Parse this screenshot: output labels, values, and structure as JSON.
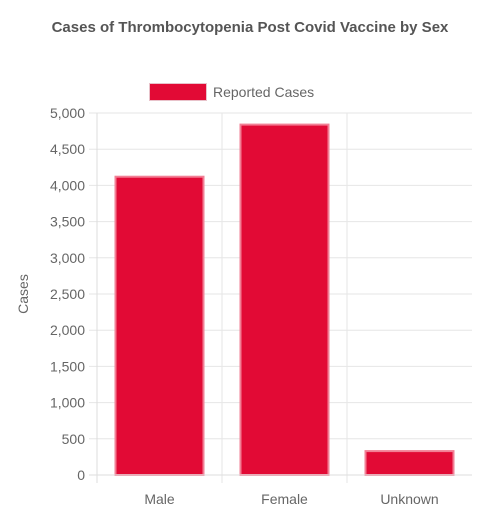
{
  "colors": {
    "bar_fill": "#e20a35",
    "bar_border": "#f27f95",
    "grid": "#e6e6e6",
    "text": "#666666"
  },
  "chart_data": {
    "type": "bar",
    "title": "Cases of Thrombocytopenia Post Covid Vaccine by Sex",
    "categories": [
      "Male",
      "Female",
      "Unknown"
    ],
    "series": [
      {
        "name": "Reported Cases",
        "values": [
          4120,
          4840,
          330
        ]
      }
    ],
    "xlabel": "",
    "ylabel": "Cases",
    "ylim": [
      0,
      5000
    ],
    "yticks": [
      0,
      500,
      1000,
      1500,
      2000,
      2500,
      3000,
      3500,
      4000,
      4500,
      5000
    ],
    "ytick_labels": [
      "0",
      "500",
      "1,000",
      "1,500",
      "2,000",
      "2,500",
      "3,000",
      "3,500",
      "4,000",
      "4,500",
      "5,000"
    ],
    "grid": true,
    "legend_position": "top"
  }
}
